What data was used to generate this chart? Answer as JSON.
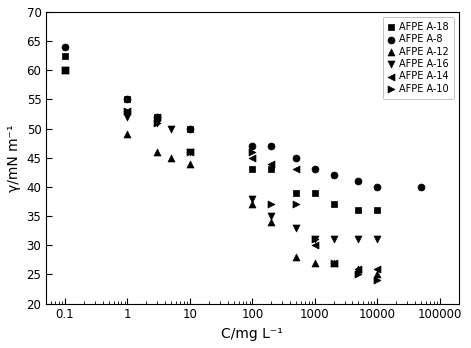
{
  "title": "",
  "xlabel": "C/mg L⁻¹",
  "ylabel": "γ/mN m⁻¹",
  "xlim": [
    0.05,
    200000
  ],
  "ylim": [
    20,
    70
  ],
  "yticks": [
    20,
    25,
    30,
    35,
    40,
    45,
    50,
    55,
    60,
    65,
    70
  ],
  "background_color": "#ffffff",
  "series": [
    {
      "label": "AFPE A-18",
      "marker": "s",
      "color": "#000000",
      "markersize": 5,
      "x": [
        0.1,
        1,
        3,
        10,
        100,
        200,
        500,
        1000,
        2000,
        5000,
        10000
      ],
      "y": [
        62.5,
        55,
        52,
        50,
        43,
        43,
        39,
        39,
        37,
        36,
        36
      ]
    },
    {
      "label": "AFPE A-8",
      "marker": "o",
      "color": "#000000",
      "markersize": 5,
      "x": [
        0.1,
        1,
        3,
        10,
        100,
        200,
        500,
        1000,
        2000,
        5000,
        10000,
        50000
      ],
      "y": [
        64,
        55,
        52,
        50,
        47,
        47,
        45,
        43,
        42,
        41,
        40,
        40
      ]
    },
    {
      "label": "AFPE A-12",
      "marker": "^",
      "color": "#000000",
      "markersize": 5,
      "x": [
        0.1,
        1,
        3,
        5,
        10,
        100,
        200,
        500,
        1000,
        2000,
        5000,
        10000
      ],
      "y": [
        60,
        49,
        46,
        45,
        44,
        37,
        34,
        28,
        27,
        27,
        26,
        25
      ]
    },
    {
      "label": "AFPE A-16",
      "marker": "v",
      "color": "#000000",
      "markersize": 5,
      "x": [
        0.1,
        1,
        3,
        5,
        10,
        100,
        200,
        500,
        1000,
        2000,
        5000,
        10000
      ],
      "y": [
        60,
        52,
        51,
        50,
        46,
        38,
        35,
        33,
        31,
        31,
        31,
        31
      ]
    },
    {
      "label": "AFPE A-14",
      "marker": "<",
      "color": "#000000",
      "markersize": 5,
      "x": [
        0.1,
        1,
        3,
        10,
        100,
        200,
        500,
        1000,
        2000,
        5000,
        10000
      ],
      "y": [
        60,
        53,
        52,
        46,
        45,
        44,
        43,
        30,
        27,
        26,
        26
      ]
    },
    {
      "label": "AFPE A-10",
      "marker": ">",
      "color": "#000000",
      "markersize": 5,
      "x": [
        0.1,
        1,
        3,
        10,
        100,
        200,
        500,
        1000,
        2000,
        5000,
        10000
      ],
      "y": [
        60,
        53,
        51,
        46,
        46,
        37,
        37,
        31,
        27,
        25,
        24
      ]
    }
  ]
}
